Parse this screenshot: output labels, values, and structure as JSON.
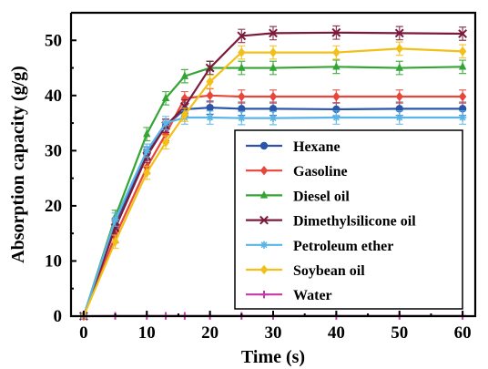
{
  "chart_data": {
    "type": "line",
    "xlabel": "Time (s)",
    "ylabel": "Absorption capacity (g/g)",
    "xlim": [
      -2,
      62
    ],
    "ylim": [
      0,
      55
    ],
    "xticks": [
      0,
      10,
      20,
      30,
      40,
      50,
      60
    ],
    "yticks": [
      0,
      10,
      20,
      30,
      40,
      50
    ],
    "legend_position": "right",
    "grid": false,
    "x": [
      0,
      5,
      10,
      13,
      16,
      20,
      25,
      30,
      40,
      50,
      60
    ],
    "series": [
      {
        "name": "Hexane",
        "color": "#2b56a8",
        "marker": "circle",
        "values": [
          0,
          16.5,
          29.5,
          34.5,
          37.5,
          37.8,
          37.6,
          37.6,
          37.5,
          37.6,
          37.6
        ]
      },
      {
        "name": "Gasoline",
        "color": "#e8463a",
        "marker": "diamond",
        "values": [
          0,
          14.5,
          27.0,
          33.0,
          39.5,
          40.0,
          39.8,
          39.8,
          39.8,
          39.8,
          39.8
        ]
      },
      {
        "name": "Diesel oil",
        "color": "#34a534",
        "marker": "triangle",
        "values": [
          0,
          18.0,
          33.0,
          39.5,
          43.5,
          45.0,
          45.0,
          45.0,
          45.2,
          45.0,
          45.2
        ]
      },
      {
        "name": "Dimethylsilicone oil",
        "color": "#7b1a3c",
        "marker": "x",
        "values": [
          0,
          16.0,
          29.0,
          34.5,
          38.0,
          45.0,
          50.8,
          51.3,
          51.4,
          51.3,
          51.2
        ]
      },
      {
        "name": "Petroleum ether",
        "color": "#5ab4e8",
        "marker": "star",
        "values": [
          0,
          17.5,
          30.0,
          35.0,
          36.0,
          36.0,
          35.9,
          35.9,
          36.0,
          36.0,
          36.0
        ]
      },
      {
        "name": "Soybean oil",
        "color": "#f2c018",
        "marker": "diamond",
        "values": [
          0,
          13.5,
          26.0,
          31.5,
          36.5,
          42.5,
          47.8,
          47.8,
          47.8,
          48.5,
          48.0
        ]
      },
      {
        "name": "Water",
        "color": "#c43aa8",
        "marker": "plus",
        "values": [
          0,
          0.05,
          0.05,
          0.05,
          0.05,
          0.05,
          0.05,
          0.05,
          0.05,
          0.05,
          0.05
        ]
      }
    ]
  }
}
